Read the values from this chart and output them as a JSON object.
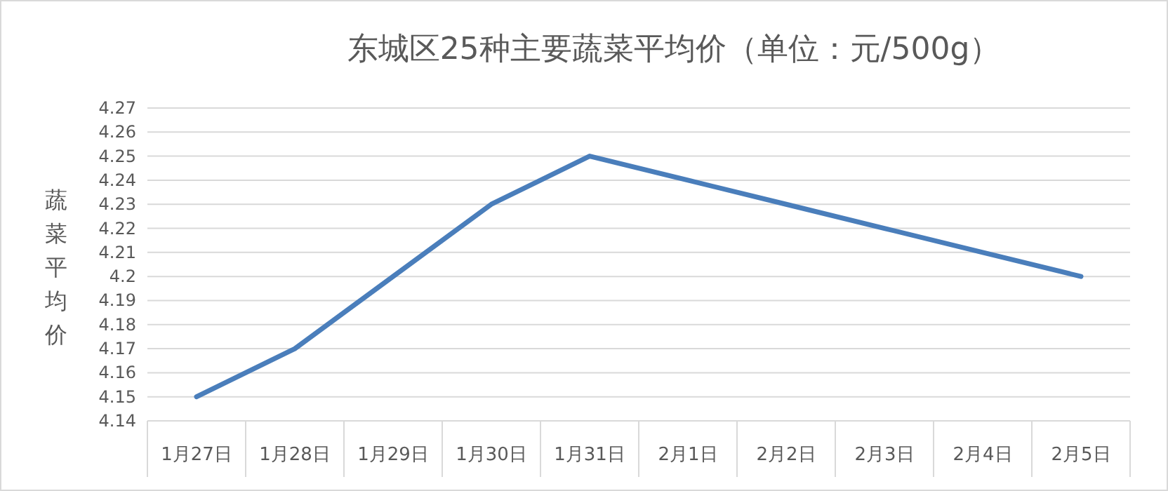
{
  "chart_data": {
    "type": "line",
    "title": "东城区25种主要蔬菜平均价（单位：元/500g）",
    "ylabel": "蔬菜平均价",
    "categories": [
      "1月27日",
      "1月28日",
      "1月29日",
      "1月30日",
      "1月31日",
      "2月1日",
      "2月2日",
      "2月3日",
      "2月4日",
      "2月5日"
    ],
    "series": [
      {
        "color": "#4a7ebb",
        "values": [
          4.15,
          4.17,
          4.2,
          4.23,
          4.25,
          4.24,
          4.23,
          4.22,
          4.21,
          4.2
        ]
      }
    ],
    "ylim": [
      4.14,
      4.27
    ],
    "yticks": [
      4.14,
      4.15,
      4.16,
      4.17,
      4.18,
      4.19,
      4.2,
      4.21,
      4.22,
      4.23,
      4.24,
      4.25,
      4.26,
      4.27
    ],
    "grid": "y"
  }
}
